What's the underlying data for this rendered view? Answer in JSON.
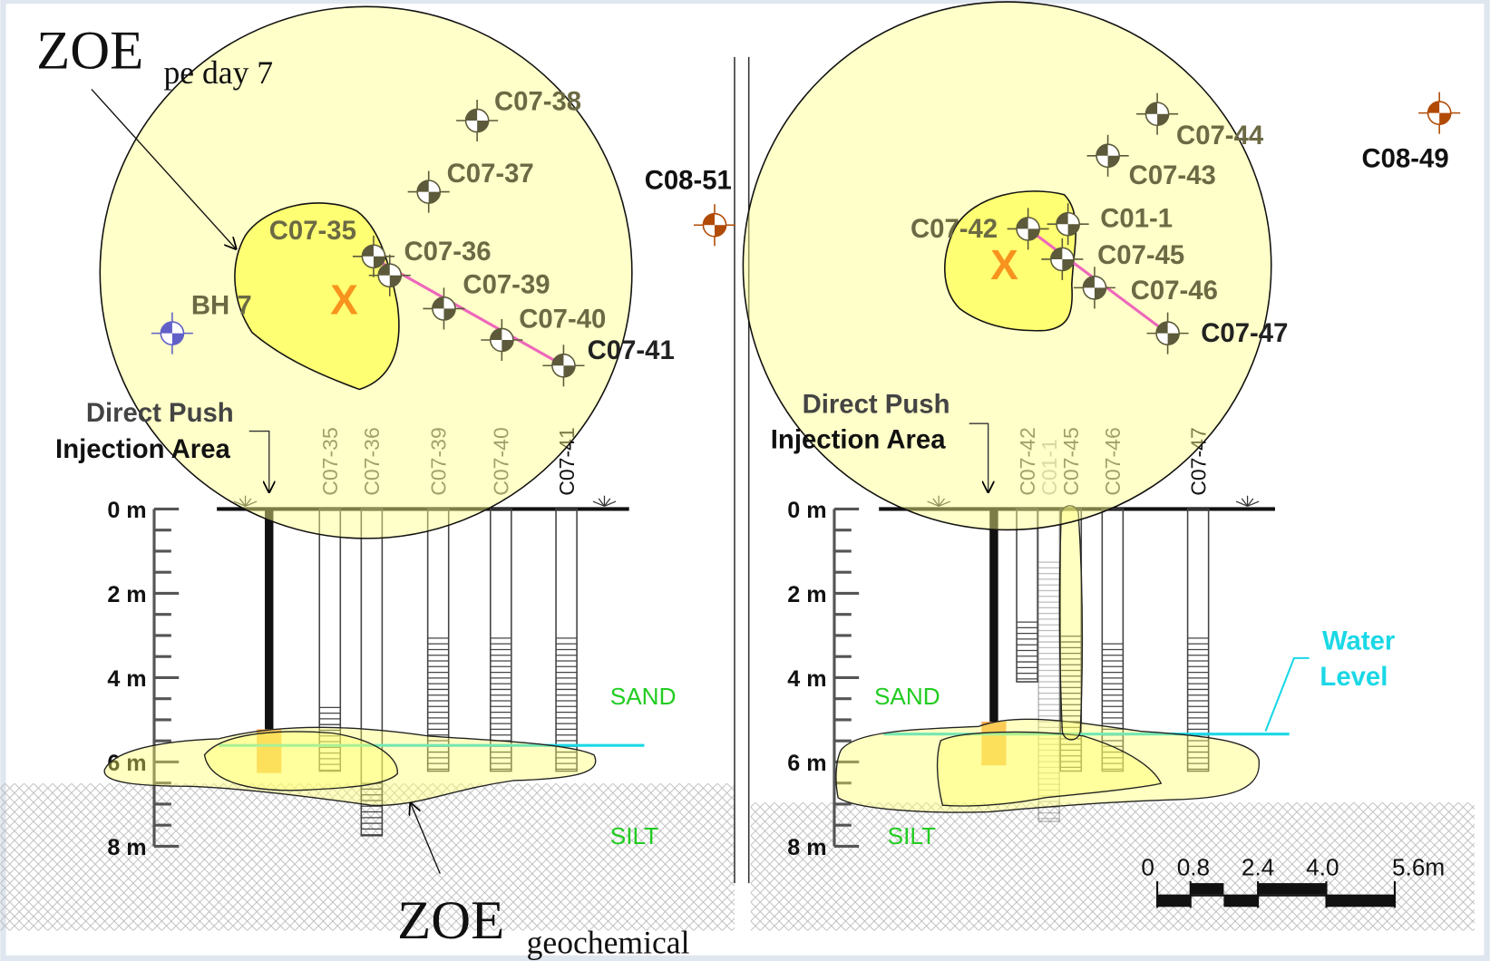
{
  "annotations": {
    "zoe_pe_day7": {
      "text": "ZOE",
      "subscript": "pe day 7"
    },
    "zoe_geochemical": {
      "text": "ZOE",
      "subscript": "geochemical"
    }
  },
  "left_panel": {
    "plan_labels": [
      "C07-38",
      "C07-37",
      "C08-51",
      "C07-35",
      "C07-36",
      "C07-39",
      "BH 7",
      "C07-40",
      "C07-41"
    ],
    "injection_marker": "X",
    "injection_label": [
      "Direct Push",
      "Injection Area"
    ],
    "section_wells": [
      "C07-35",
      "C07-36",
      "C07-39",
      "C07-40",
      "C07-41"
    ],
    "depth_labels": [
      "0 m",
      "2 m",
      "4 m",
      "6 m",
      "8 m"
    ],
    "layers": [
      "SAND",
      "SILT"
    ]
  },
  "right_panel": {
    "plan_labels": [
      "C07-44",
      "C08-49",
      "C07-43",
      "C01-1",
      "C07-42",
      "C07-45",
      "C07-46",
      "C07-47"
    ],
    "injection_marker": "X",
    "injection_label": [
      "Direct Push",
      "Injection Area"
    ],
    "section_wells": [
      "C07-42",
      "C01-1",
      "C07-45",
      "C07-46",
      "C07-47"
    ],
    "depth_labels": [
      "0 m",
      "2 m",
      "4 m",
      "6 m",
      "8 m"
    ],
    "layers": [
      "SAND",
      "SILT"
    ],
    "water_level": [
      "Water",
      "Level"
    ],
    "scale_labels": [
      "0",
      "0.8",
      "2.4",
      "4.0",
      "5.6m"
    ]
  }
}
